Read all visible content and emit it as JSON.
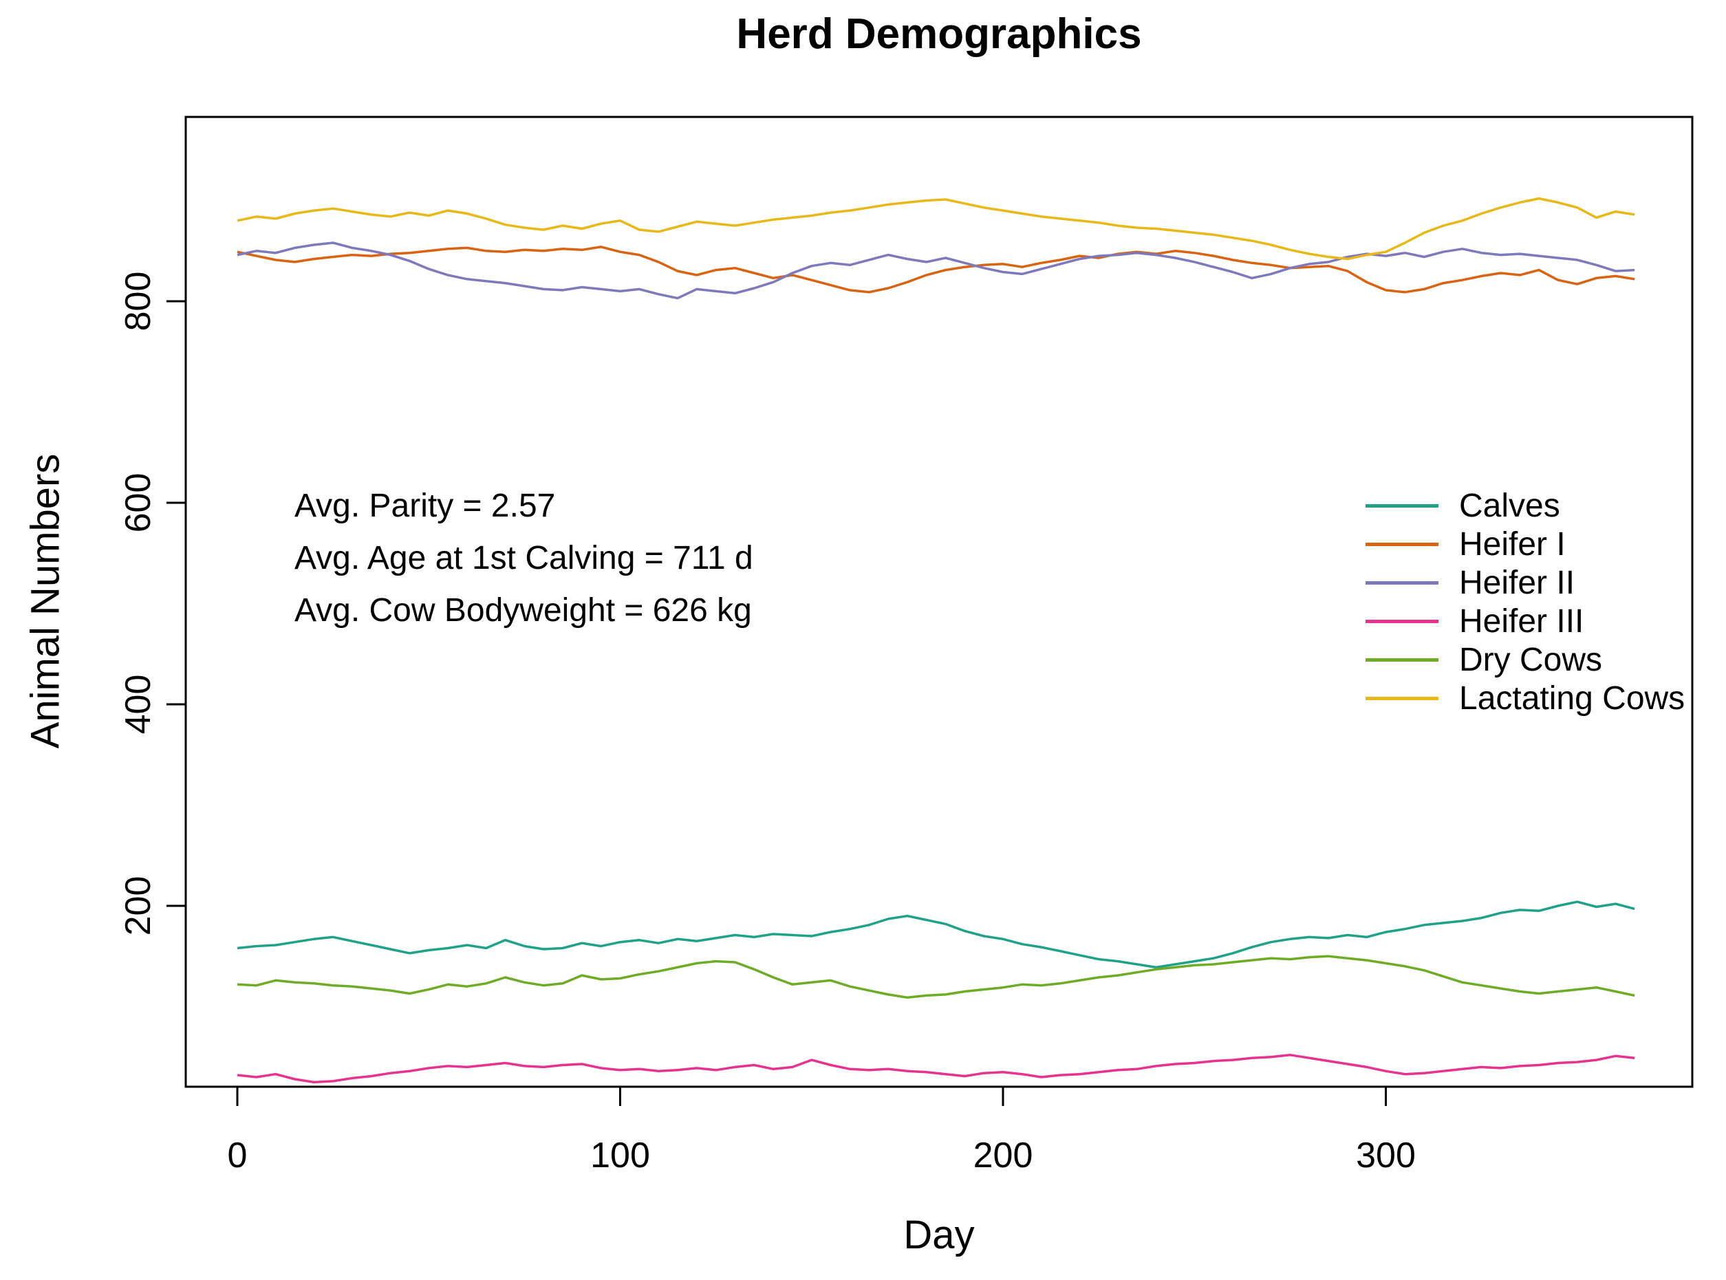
{
  "title": "Herd Demographics",
  "x_axis": {
    "label": "Day",
    "ticks": [
      0,
      100,
      200,
      300
    ]
  },
  "y_axis": {
    "label": "Animal Numbers",
    "ticks": [
      200,
      400,
      600,
      800
    ]
  },
  "annotations": [
    "Avg. Parity = 2.57",
    "Avg. Age at 1st Calving = 711 d",
    "Avg. Cow Bodyweight = 626 kg"
  ],
  "axis_color": "#000000",
  "chart_data": {
    "type": "line",
    "title": "Herd Demographics",
    "xlabel": "Day",
    "ylabel": "Animal Numbers",
    "xlim": [
      -13.5,
      380
    ],
    "ylim": [
      20,
      983
    ],
    "x_ticks": [
      0,
      100,
      200,
      300
    ],
    "y_ticks": [
      200,
      400,
      600,
      800
    ],
    "grid": false,
    "legend_position": "right-middle",
    "x": [
      0,
      5,
      10,
      15,
      20,
      25,
      30,
      35,
      40,
      45,
      50,
      55,
      60,
      65,
      70,
      75,
      80,
      85,
      90,
      95,
      100,
      105,
      110,
      115,
      120,
      125,
      130,
      135,
      140,
      145,
      150,
      155,
      160,
      165,
      170,
      175,
      180,
      185,
      190,
      195,
      200,
      205,
      210,
      215,
      220,
      225,
      230,
      235,
      240,
      245,
      250,
      255,
      260,
      265,
      270,
      275,
      280,
      285,
      290,
      295,
      300,
      305,
      310,
      315,
      320,
      325,
      330,
      335,
      340,
      345,
      350,
      355,
      360,
      365
    ],
    "series": [
      {
        "name": "Calves",
        "color": "#1FA287",
        "values": [
          158,
          160,
          161,
          164,
          167,
          169,
          165,
          161,
          157,
          153,
          156,
          158,
          161,
          158,
          166,
          160,
          157,
          158,
          163,
          160,
          164,
          166,
          163,
          167,
          165,
          168,
          171,
          169,
          172,
          171,
          170,
          174,
          177,
          181,
          187,
          190,
          186,
          182,
          175,
          170,
          167,
          162,
          159,
          155,
          151,
          147,
          145,
          142,
          139,
          142,
          145,
          148,
          153,
          159,
          164,
          167,
          169,
          168,
          171,
          169,
          174,
          177,
          181,
          183,
          185,
          188,
          193,
          196,
          195,
          200,
          204,
          199,
          202,
          197
        ]
      },
      {
        "name": "Heifer I",
        "color": "#D96311",
        "values": [
          849,
          845,
          841,
          839,
          842,
          844,
          846,
          845,
          847,
          848,
          850,
          852,
          853,
          850,
          849,
          851,
          850,
          852,
          851,
          854,
          849,
          846,
          839,
          830,
          826,
          831,
          833,
          828,
          823,
          826,
          821,
          816,
          811,
          809,
          813,
          819,
          826,
          831,
          834,
          836,
          837,
          834,
          838,
          841,
          845,
          843,
          847,
          849,
          847,
          850,
          848,
          845,
          841,
          838,
          836,
          833,
          834,
          835,
          830,
          819,
          811,
          809,
          812,
          818,
          821,
          825,
          828,
          826,
          831,
          821,
          817,
          823,
          825,
          822
        ]
      },
      {
        "name": "Heifer II",
        "color": "#7E78BC",
        "values": [
          846,
          850,
          848,
          853,
          856,
          858,
          853,
          850,
          846,
          840,
          832,
          826,
          822,
          820,
          818,
          815,
          812,
          811,
          814,
          812,
          810,
          812,
          807,
          803,
          812,
          810,
          808,
          813,
          819,
          828,
          835,
          838,
          836,
          841,
          846,
          842,
          839,
          843,
          838,
          833,
          829,
          827,
          832,
          837,
          842,
          845,
          846,
          848,
          846,
          843,
          839,
          834,
          829,
          823,
          827,
          833,
          837,
          839,
          844,
          847,
          845,
          848,
          844,
          849,
          852,
          848,
          846,
          847,
          845,
          843,
          841,
          836,
          830,
          831
        ]
      },
      {
        "name": "Heifer III",
        "color": "#E73390",
        "values": [
          32,
          30,
          33,
          28,
          25,
          26,
          29,
          31,
          34,
          36,
          39,
          41,
          40,
          42,
          44,
          41,
          40,
          42,
          43,
          39,
          37,
          38,
          36,
          37,
          39,
          37,
          40,
          42,
          38,
          40,
          47,
          42,
          38,
          37,
          38,
          36,
          35,
          33,
          31,
          34,
          35,
          33,
          30,
          32,
          33,
          35,
          37,
          38,
          41,
          43,
          44,
          46,
          47,
          49,
          50,
          52,
          49,
          46,
          43,
          40,
          36,
          33,
          34,
          36,
          38,
          40,
          39,
          41,
          42,
          44,
          45,
          47,
          51,
          49
        ]
      },
      {
        "name": "Dry Cows",
        "color": "#6EAC26",
        "values": [
          122,
          121,
          126,
          124,
          123,
          121,
          120,
          118,
          116,
          113,
          117,
          122,
          120,
          123,
          129,
          124,
          121,
          123,
          131,
          127,
          128,
          132,
          135,
          139,
          143,
          145,
          144,
          137,
          129,
          122,
          124,
          126,
          120,
          116,
          112,
          109,
          111,
          112,
          115,
          117,
          119,
          122,
          121,
          123,
          126,
          129,
          131,
          134,
          137,
          139,
          141,
          142,
          144,
          146,
          148,
          147,
          149,
          150,
          148,
          146,
          143,
          140,
          136,
          130,
          124,
          121,
          118,
          115,
          113,
          115,
          117,
          119,
          115,
          111
        ]
      },
      {
        "name": "Lactating Cows",
        "color": "#E8B818",
        "values": [
          880,
          884,
          882,
          887,
          890,
          892,
          889,
          886,
          884,
          888,
          885,
          890,
          887,
          882,
          876,
          873,
          871,
          875,
          872,
          877,
          880,
          871,
          869,
          874,
          879,
          877,
          875,
          878,
          881,
          883,
          885,
          888,
          890,
          893,
          896,
          898,
          900,
          901,
          897,
          893,
          890,
          887,
          884,
          882,
          880,
          878,
          875,
          873,
          872,
          870,
          868,
          866,
          863,
          860,
          856,
          851,
          847,
          844,
          842,
          846,
          849,
          858,
          868,
          875,
          880,
          887,
          893,
          898,
          902,
          898,
          893,
          883,
          889,
          886
        ]
      }
    ]
  }
}
